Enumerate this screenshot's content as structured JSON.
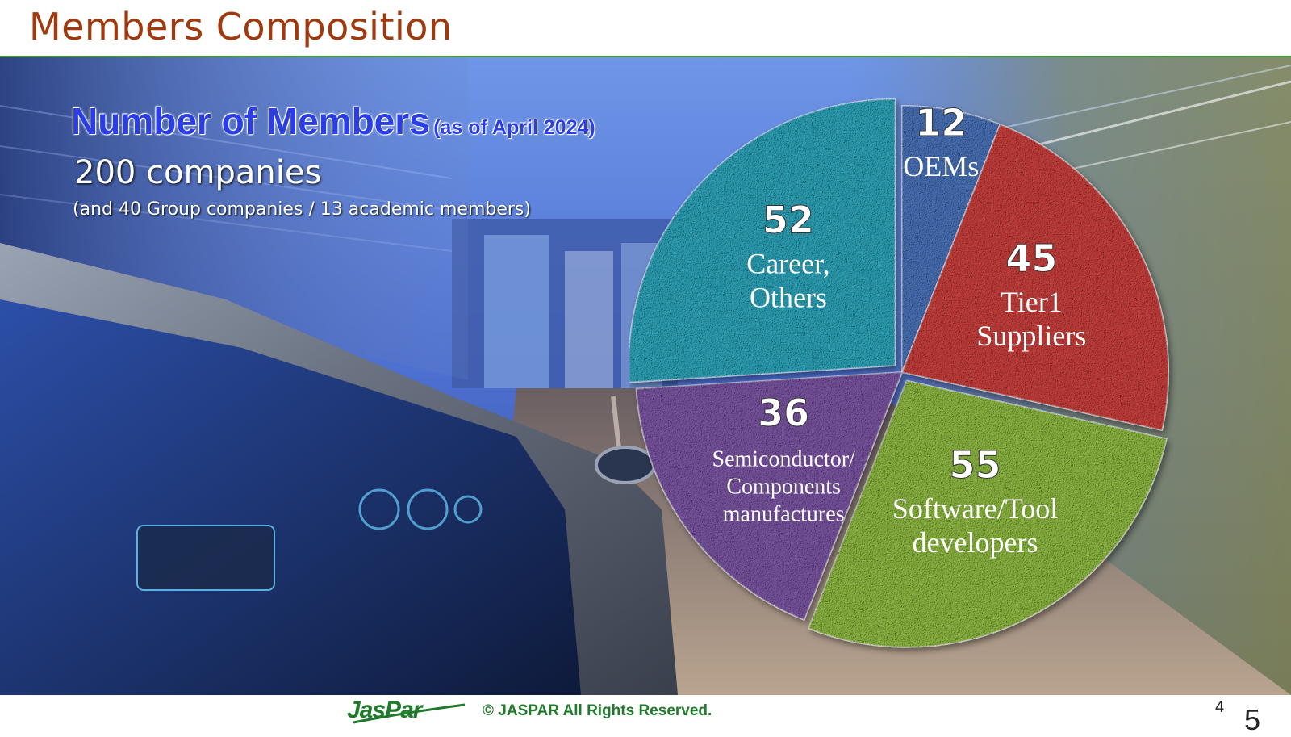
{
  "slide": {
    "title": "Members Composition",
    "page_number_small": "4",
    "page_number_large": "5"
  },
  "headline": {
    "main": "Number of Members",
    "sub": "(as of April 2024)",
    "companies": "200 companies",
    "note": "(and 40 Group companies / 13 academic members)"
  },
  "footer": {
    "logo_text": "JasPar",
    "copyright": "© JASPAR All Rights Reserved."
  },
  "colors": {
    "title": "#a0390e",
    "headline": "#2b3ee6",
    "rule": "#3f9a3a",
    "footer_text": "#1f7a2b"
  },
  "chart_data": {
    "type": "pie",
    "series": [
      {
        "value": 12,
        "label": "OEMs",
        "color": "#4a72b8"
      },
      {
        "value": 45,
        "label": "Tier1 Suppliers",
        "color": "#c8403d"
      },
      {
        "value": 55,
        "label": "Software/Tool developers",
        "color": "#8db842"
      },
      {
        "value": 36,
        "label": "Semiconductor/ Components manufactures",
        "color": "#7b55a2"
      },
      {
        "value": 52,
        "label": "Career, Others",
        "color": "#2ea3b8"
      }
    ],
    "total": 200,
    "exploded_slices": [
      "Software/Tool developers",
      "Career, Others"
    ]
  }
}
